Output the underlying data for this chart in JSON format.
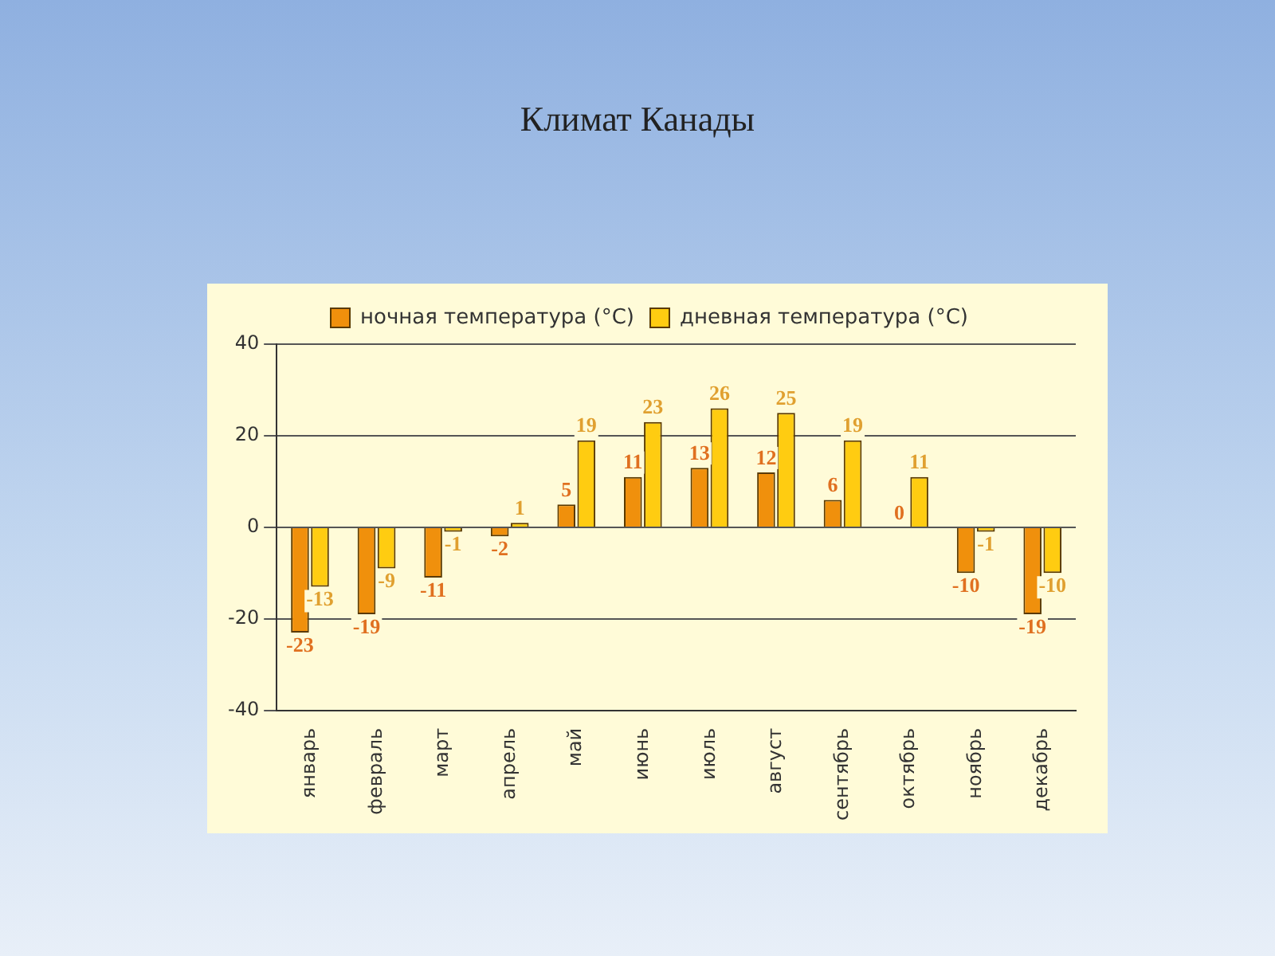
{
  "chart_data": {
    "type": "bar",
    "title": "Климат Канады",
    "categories": [
      "январь",
      "февраль",
      "март",
      "апрель",
      "май",
      "июнь",
      "июль",
      "август",
      "сентябрь",
      "октябрь",
      "ноябрь",
      "декабрь"
    ],
    "series": [
      {
        "name": "ночная температура (°C)",
        "color": "#f0900c",
        "values": [
          -23,
          -19,
          -11,
          -2,
          5,
          11,
          13,
          12,
          6,
          0,
          -10,
          -19
        ]
      },
      {
        "name": "дневная температура (°C)",
        "color": "#ffcc11",
        "values": [
          -13,
          -9,
          -1,
          1,
          19,
          23,
          26,
          25,
          19,
          11,
          -1,
          -10
        ]
      }
    ],
    "ylim": [
      -40,
      40
    ],
    "yticks": [
      -40,
      -20,
      0,
      20,
      40
    ],
    "grid": "y",
    "legend": "top",
    "data_labels": true
  }
}
